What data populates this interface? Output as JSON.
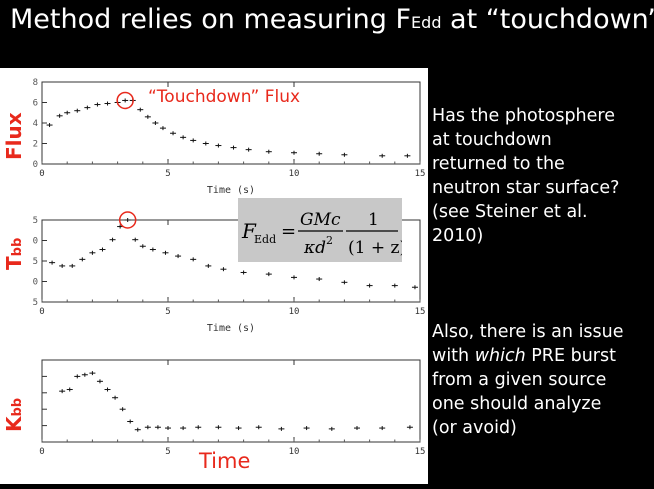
{
  "slide": {
    "title_main": "Method relies on measuring F",
    "title_sub": "Edd",
    "title_end": " at “touchdown”",
    "callout": "“Touchdown” Flux",
    "xaxis_label_bottom": "Time",
    "xaxis_label_small": "Time (s)",
    "ylabel_flux": "Flux",
    "ylabel_t_main": "T",
    "ylabel_t_sub": "bb",
    "ylabel_k_main": "K",
    "ylabel_k_sub": "bb",
    "formula": {
      "lhs": "F",
      "lhs_sub": "Edd",
      "num1": "GMc",
      "den1": "κd",
      "den1_sup": "2",
      "num2": "1",
      "den2": "(1 + z)"
    },
    "question_lines": [
      "Has the photosphere",
      "at touchdown",
      "returned to the",
      "neutron star surface?",
      "(see Steiner et al.",
      "2010)"
    ],
    "issue_line1": "Also, there is an issue",
    "issue_line2_pre": "with ",
    "issue_line2_em": "which",
    "issue_line2_post": " PRE burst",
    "issue_line3": "from a given source",
    "issue_line4": "one should analyze",
    "issue_line5": "(or avoid)"
  },
  "colors": {
    "accent": "#e8291c",
    "background": "#000000",
    "text": "#ffffff",
    "formula_bg": "#c8c8c8"
  },
  "chart_data": [
    {
      "type": "scatter",
      "name": "flux-panel",
      "ylabel": "Flux",
      "xlim": [
        0,
        15
      ],
      "ylim": [
        0,
        8
      ],
      "yticks": [
        "0",
        "2",
        "4",
        "6",
        "8"
      ],
      "xticks": [
        "0",
        "5",
        "10",
        "15"
      ],
      "x": [
        0.3,
        0.7,
        1.0,
        1.4,
        1.8,
        2.2,
        2.6,
        3.0,
        3.3,
        3.6,
        3.9,
        4.2,
        4.5,
        4.8,
        5.2,
        5.6,
        6.0,
        6.5,
        7.0,
        7.6,
        8.2,
        9.0,
        10.0,
        11.0,
        12.0,
        13.5,
        14.5
      ],
      "y": [
        3.8,
        4.7,
        5.0,
        5.2,
        5.5,
        5.8,
        5.9,
        6.0,
        6.2,
        6.2,
        5.3,
        4.6,
        4.0,
        3.5,
        3.0,
        2.6,
        2.3,
        2.0,
        1.8,
        1.6,
        1.4,
        1.2,
        1.1,
        1.0,
        0.9,
        0.8,
        0.8
      ]
    },
    {
      "type": "scatter",
      "name": "kT-panel",
      "xlim": [
        0,
        15
      ],
      "ylim": [
        0.5,
        3.0
      ],
      "yticks": [
        "5",
        "0",
        "5",
        "0",
        "5"
      ],
      "xticks": [
        "0",
        "5",
        "10",
        "15"
      ],
      "x": [
        0.4,
        0.8,
        1.2,
        1.6,
        2.0,
        2.4,
        2.8,
        3.1,
        3.4,
        3.7,
        4.0,
        4.4,
        4.9,
        5.4,
        6.0,
        6.6,
        7.2,
        8.0,
        9.0,
        10.0,
        11.0,
        12.0,
        13.0,
        14.0,
        14.8
      ],
      "y": [
        1.7,
        1.6,
        1.6,
        1.8,
        2.0,
        2.1,
        2.4,
        2.8,
        3.0,
        2.4,
        2.2,
        2.1,
        2.0,
        1.9,
        1.8,
        1.6,
        1.5,
        1.4,
        1.35,
        1.25,
        1.2,
        1.1,
        1.0,
        1.0,
        0.95
      ]
    },
    {
      "type": "scatter",
      "name": "Kbb-panel",
      "xlim": [
        0,
        15
      ],
      "ylim": [
        0,
        100
      ],
      "yticks": [],
      "xticks": [
        "0",
        "5",
        "10",
        "15"
      ],
      "x": [
        0.8,
        1.1,
        1.4,
        1.7,
        2.0,
        2.3,
        2.6,
        2.9,
        3.2,
        3.5,
        3.8,
        4.2,
        4.6,
        5.0,
        5.6,
        6.2,
        7.0,
        7.8,
        8.6,
        9.5,
        10.5,
        11.5,
        12.5,
        13.5,
        14.6
      ],
      "y": [
        62,
        64,
        80,
        82,
        84,
        74,
        64,
        54,
        40,
        25,
        15,
        18,
        18,
        17,
        17,
        18,
        18,
        17,
        18,
        16,
        17,
        16,
        17,
        17,
        18
      ]
    }
  ]
}
